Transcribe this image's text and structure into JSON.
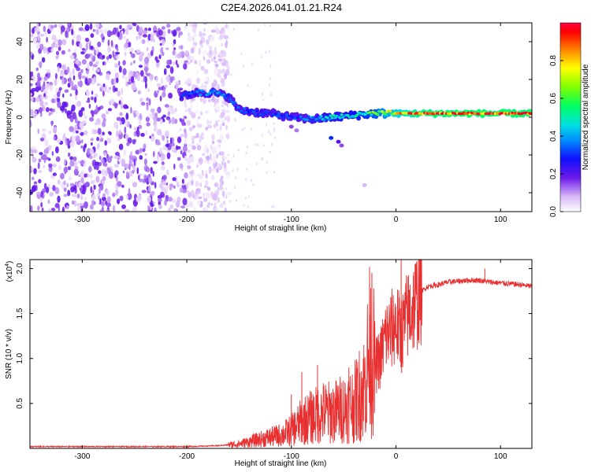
{
  "title": "C2E4.2026.041.01.21.R24",
  "chart_data": [
    {
      "type": "heatmap",
      "xlabel": "Height of straight line (km)",
      "ylabel": "Frequency (Hz)",
      "xlim": [
        -350,
        130
      ],
      "ylim": [
        -50,
        50
      ],
      "xticks": [
        -300,
        -200,
        -100,
        0,
        100
      ],
      "yticks": [
        -40,
        -20,
        0,
        20,
        40
      ],
      "description_series": [
        {
          "name": "noise_region",
          "x_range": [
            -350,
            -175
          ],
          "freq_range": [
            -50,
            50
          ],
          "amplitude": 0.1
        },
        {
          "name": "signal_track",
          "x": [
            -205,
            -190,
            -175,
            -160,
            -150,
            -140,
            -120,
            -100,
            -80,
            -60,
            -40,
            -20,
            0,
            20,
            50,
            80,
            100,
            130
          ],
          "freq": [
            11,
            13,
            13,
            11,
            4,
            3,
            2,
            0,
            -1,
            0,
            1,
            2,
            2,
            2,
            2,
            2,
            2,
            2
          ],
          "amplitude": [
            0.3,
            0.35,
            0.4,
            0.35,
            0.35,
            0.3,
            0.3,
            0.3,
            0.4,
            0.45,
            0.5,
            0.6,
            0.8,
            0.95,
            1.0,
            1.0,
            1.0,
            1.0
          ]
        }
      ],
      "colorbar": {
        "label": "Normalized spectral amplitude",
        "range": [
          0,
          1
        ],
        "ticks": [
          0.0,
          0.2,
          0.4,
          0.6,
          0.8
        ]
      }
    },
    {
      "type": "line",
      "xlabel": "Height of straight line (km)",
      "ylabel": "SNR (10 * v/v)",
      "multiplier_label": "(x10",
      "multiplier_exp": "4",
      "multiplier_close": ")",
      "xlim": [
        -350,
        130
      ],
      "ylim": [
        0,
        2.1
      ],
      "xticks": [
        -300,
        -200,
        -100,
        0,
        100
      ],
      "yticks": [
        0.5,
        1.0,
        1.5,
        2.0
      ],
      "series": [
        {
          "name": "SNR",
          "color": "#e83030",
          "x": [
            -350,
            -300,
            -250,
            -200,
            -170,
            -150,
            -130,
            -110,
            -100,
            -90,
            -80,
            -70,
            -60,
            -50,
            -40,
            -30,
            -25,
            -20,
            -15,
            -10,
            -5,
            0,
            5,
            10,
            15,
            20,
            25,
            30,
            40,
            50,
            60,
            70,
            80,
            90,
            100,
            110,
            120,
            130
          ],
          "values": [
            0.02,
            0.02,
            0.02,
            0.02,
            0.03,
            0.05,
            0.1,
            0.15,
            0.2,
            0.3,
            0.35,
            0.4,
            0.4,
            0.45,
            0.5,
            0.7,
            1.1,
            0.9,
            1.0,
            1.25,
            1.3,
            1.4,
            1.25,
            1.45,
            1.55,
            1.65,
            1.75,
            1.8,
            1.82,
            1.85,
            1.86,
            1.87,
            1.87,
            1.85,
            1.84,
            1.83,
            1.82,
            1.8
          ],
          "spikes": [
            {
              "x": -100,
              "value": 0.6
            },
            {
              "x": -90,
              "value": 0.85
            },
            {
              "x": -75,
              "value": 0.93
            },
            {
              "x": -45,
              "value": 0.9
            },
            {
              "x": -25,
              "value": 1.5
            },
            {
              "x": -23,
              "value": 1.95
            },
            {
              "x": 5,
              "value": 2.1
            },
            {
              "x": 20,
              "value": 1.95
            },
            {
              "x": 85,
              "value": 2.0
            }
          ]
        }
      ]
    }
  ]
}
